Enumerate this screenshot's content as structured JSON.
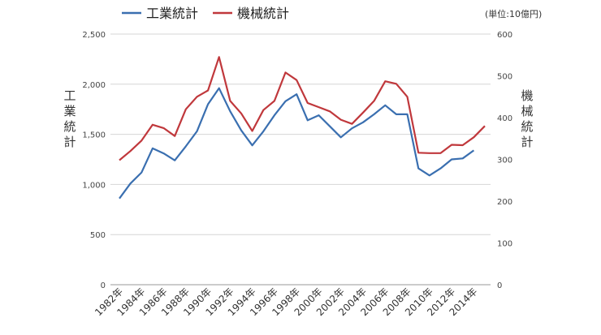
{
  "chart_data": {
    "type": "line",
    "unit_note": "(単位:10億円)",
    "y_left": {
      "label": "工業統計",
      "min": 0,
      "max": 2500,
      "ticks": [
        "0",
        "500",
        "1,000",
        "1,500",
        "2,000",
        "2,500"
      ]
    },
    "y_right": {
      "label": "機械統計",
      "min": 0,
      "max": 600,
      "ticks": [
        "0",
        "100",
        "200",
        "300",
        "400",
        "500",
        "600"
      ]
    },
    "x": [
      1982,
      1983,
      1984,
      1985,
      1986,
      1987,
      1988,
      1989,
      1990,
      1991,
      1992,
      1993,
      1994,
      1995,
      1996,
      1997,
      1998,
      1999,
      2000,
      2001,
      2002,
      2003,
      2004,
      2005,
      2006,
      2007,
      2008,
      2009,
      2010,
      2011,
      2012,
      2013,
      2014,
      2015
    ],
    "x_tick_labels": [
      "1982年",
      "1984年",
      "1986年",
      "1988年",
      "1990年",
      "1992年",
      "1994年",
      "1996年",
      "1998年",
      "2000年",
      "2002年",
      "2004年",
      "2006年",
      "2008年",
      "2010年",
      "2012年",
      "2014年"
    ],
    "series": [
      {
        "name": "工業統計",
        "axis": "left",
        "color": "#3a6fb0",
        "values": [
          860,
          1010,
          1120,
          1360,
          1310,
          1240,
          1380,
          1530,
          1800,
          1960,
          1730,
          1540,
          1390,
          1530,
          1690,
          1830,
          1900,
          1640,
          1690,
          1580,
          1470,
          1560,
          1620,
          1700,
          1790,
          1700,
          1700,
          1160,
          1090,
          1160,
          1250,
          1260,
          1340,
          null
        ]
      },
      {
        "name": "機械統計",
        "axis": "right",
        "color": "#c0383c",
        "values": [
          298,
          320,
          345,
          383,
          375,
          356,
          420,
          450,
          465,
          545,
          440,
          410,
          368,
          418,
          440,
          508,
          490,
          435,
          425,
          415,
          395,
          385,
          412,
          440,
          487,
          481,
          450,
          316,
          315,
          315,
          335,
          334,
          353,
          380
        ]
      }
    ],
    "grid": "horizontal",
    "legend_position": "top-left"
  }
}
